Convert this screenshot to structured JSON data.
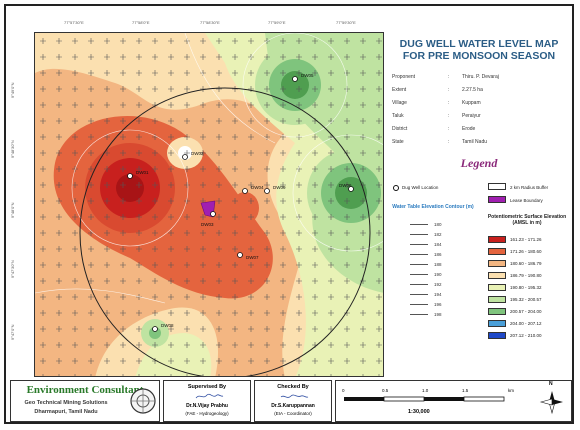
{
  "map": {
    "title_line1": "DUG WELL WATER LEVEL MAP",
    "title_line2": "FOR PRE MONSOON SEASON",
    "top_ticks": [
      "77°57'30\"E",
      "77°58'0\"E",
      "77°58'30\"E",
      "77°59'0\"E",
      "77°59'30\"E"
    ],
    "side_ticks": [
      "9°49'0\"N",
      "9°48'30\"N",
      "9°48'0\"N",
      "9°47'30\"N",
      "9°47'0\"N"
    ]
  },
  "details": [
    {
      "key": "Proponent",
      "value": "Thiru. P. Devaraj"
    },
    {
      "key": "Extent",
      "value": "2.27.5 ha"
    },
    {
      "key": "Village",
      "value": "Kuppam"
    },
    {
      "key": "Taluk",
      "value": "Peraiyur"
    },
    {
      "key": "District",
      "value": "Erode"
    },
    {
      "key": "State",
      "value": "Tamil Nadu"
    }
  ],
  "legend": {
    "title": "Legend",
    "dug_well": "Dug Well Location",
    "buffer": "2 km Radius Buffer",
    "lease": "Lease Boundary",
    "contour_title": "Water Table Elevation Contour (m)",
    "surface_title": "Potentiometric Surface Elevation (AMSL in m)",
    "contours": [
      "180",
      "182",
      "184",
      "186",
      "188",
      "190",
      "192",
      "194",
      "196",
      "198"
    ],
    "classes": [
      {
        "label": "161.23 - 171.26",
        "color": "#c8201e"
      },
      {
        "label": "171.26 - 180.60",
        "color": "#e4643e"
      },
      {
        "label": "180.60 - 186.79",
        "color": "#f3b682"
      },
      {
        "label": "186.79 - 190.80",
        "color": "#fbe0b0"
      },
      {
        "label": "190.80 - 195.32",
        "color": "#e9f2b6"
      },
      {
        "label": "195.32 - 200.57",
        "color": "#bfe3a1"
      },
      {
        "label": "200.57 - 204.00",
        "color": "#7fc47d"
      },
      {
        "label": "204.00 - 207.12",
        "color": "#4a9fd8"
      },
      {
        "label": "207.12 - 210.00",
        "color": "#1f49c8"
      }
    ]
  },
  "well_labels": [
    "DW01",
    "DW02",
    "DW03",
    "DW04",
    "DW05",
    "DW06",
    "DW07",
    "DW08",
    "DW09"
  ],
  "footer": {
    "company": "Environment Consultant",
    "company_sub": "Geo Technical Mining Solutions",
    "company_place": "Dharmapuri, Tamil Nadu",
    "supervised_title": "Supervised By",
    "supervised_name": "Dr.N.Vijay Prabhu",
    "supervised_role": "(FAE - Hydrogeology)",
    "checked_title": "Checked By",
    "checked_name": "Dr.S.Karuppannan",
    "checked_role": "(EIA - Coordinator)",
    "scale_ticks": [
      "0",
      "0.5",
      "1.0",
      "1.5"
    ],
    "scale_unit": "km",
    "scale_ratio": "1:30,000",
    "north_label": "N"
  }
}
